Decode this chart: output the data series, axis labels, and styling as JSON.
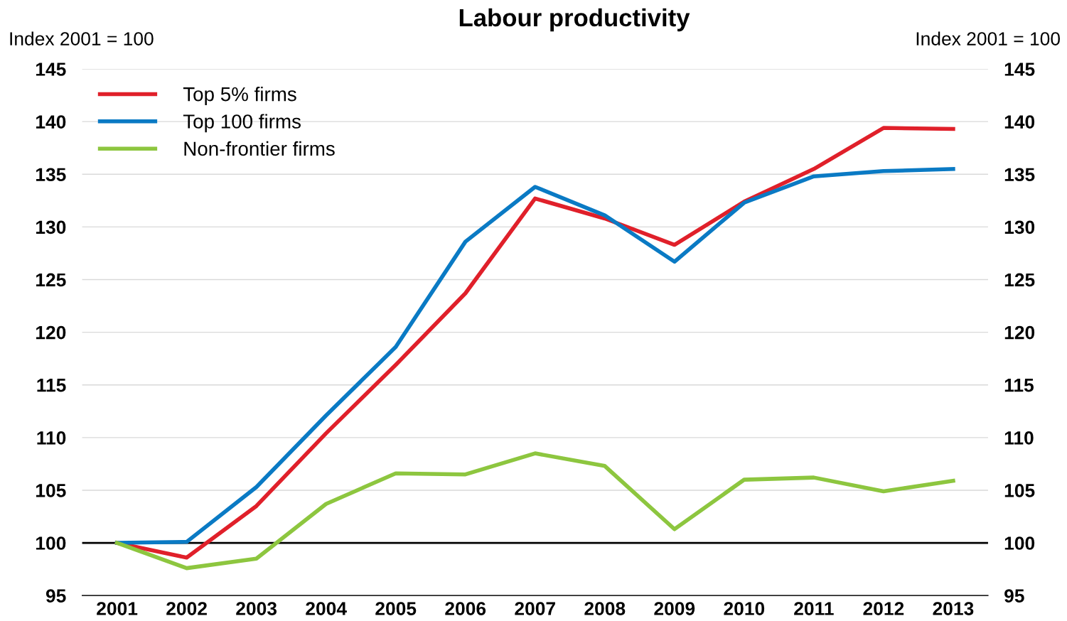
{
  "chart_data": {
    "type": "line",
    "title": "Labour productivity",
    "ylabel": "Index 2001 = 100",
    "y2label": "Index 2001 = 100",
    "categories": [
      "2001",
      "2002",
      "2003",
      "2004",
      "2005",
      "2006",
      "2007",
      "2008",
      "2009",
      "2010",
      "2011",
      "2012",
      "2013"
    ],
    "series": [
      {
        "name": "Top 5% firms",
        "color": "#e0202a",
        "values": [
          100,
          98.6,
          103.5,
          110.4,
          116.9,
          123.7,
          132.7,
          130.8,
          128.3,
          132.4,
          135.5,
          139.4,
          139.3
        ]
      },
      {
        "name": "Top 100 firms",
        "color": "#0a7ac4",
        "values": [
          100,
          100.1,
          105.3,
          112.1,
          118.6,
          128.6,
          133.8,
          131.1,
          126.7,
          132.3,
          134.8,
          135.3,
          135.5
        ]
      },
      {
        "name": "Non-frontier firms",
        "color": "#8dc63f",
        "values": [
          100,
          97.6,
          98.5,
          103.7,
          106.6,
          106.5,
          108.5,
          107.3,
          101.3,
          106.0,
          106.2,
          104.9,
          105.9
        ]
      }
    ],
    "ylim": [
      95,
      145
    ],
    "yticks": [
      95,
      100,
      105,
      110,
      115,
      120,
      125,
      130,
      135,
      140,
      145
    ],
    "y2lim": [
      95,
      145
    ],
    "y2ticks": [
      95,
      100,
      105,
      110,
      115,
      120,
      125,
      130,
      135,
      140,
      145
    ],
    "ref_lines": [
      {
        "axis": "y",
        "value": 100,
        "color": "#000000"
      }
    ],
    "grid": "y",
    "legend": "top left",
    "line_style": "solid",
    "marker": "none"
  }
}
